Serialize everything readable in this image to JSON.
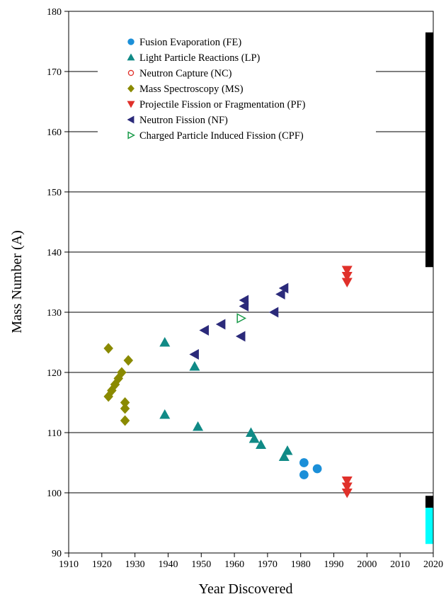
{
  "chart_data": {
    "type": "scatter",
    "title": "",
    "xlabel": "Year Discovered",
    "ylabel": "Mass Number (A)",
    "xlim": [
      1910,
      2020
    ],
    "ylim": [
      90,
      180
    ],
    "xticks": [
      1910,
      1920,
      1930,
      1940,
      1950,
      1960,
      1970,
      1980,
      1990,
      2000,
      2010,
      2020
    ],
    "yticks": [
      90,
      100,
      110,
      120,
      130,
      140,
      150,
      160,
      170,
      180
    ],
    "grid": "horizontal",
    "legend_position": "top-left",
    "series": [
      {
        "name": "Fusion Evaporation (FE)",
        "marker": "circle",
        "color": "#1b8fd8",
        "points": [
          [
            1981,
            105
          ],
          [
            1981,
            103
          ],
          [
            1985,
            104
          ]
        ]
      },
      {
        "name": "Light Particle Reactions (LP)",
        "marker": "triangle-up",
        "color": "#108a86",
        "points": [
          [
            1939,
            125
          ],
          [
            1939,
            113
          ],
          [
            1948,
            121
          ],
          [
            1949,
            111
          ],
          [
            1965,
            110
          ],
          [
            1966,
            109
          ],
          [
            1968,
            108
          ],
          [
            1975,
            106
          ],
          [
            1976,
            107
          ]
        ]
      },
      {
        "name": "Neutron Capture (NC)",
        "marker": "circle-open",
        "color": "#e0302a",
        "points": []
      },
      {
        "name": "Mass Spectroscopy (MS)",
        "marker": "diamond",
        "color": "#8a8a00",
        "points": [
          [
            1922,
            124
          ],
          [
            1922,
            116
          ],
          [
            1923,
            117
          ],
          [
            1924,
            118
          ],
          [
            1925,
            119
          ],
          [
            1926,
            120
          ],
          [
            1927,
            115
          ],
          [
            1927,
            114
          ],
          [
            1927,
            112
          ],
          [
            1928,
            122
          ]
        ]
      },
      {
        "name": "Projectile Fission or Fragmentation (PF)",
        "marker": "triangle-down",
        "color": "#e0302a",
        "points": [
          [
            1994,
            137
          ],
          [
            1994,
            136
          ],
          [
            1994,
            135
          ],
          [
            1994,
            102
          ],
          [
            1994,
            101
          ],
          [
            1994,
            100
          ]
        ]
      },
      {
        "name": "Neutron Fission (NF)",
        "marker": "triangle-left",
        "color": "#2b2a7a",
        "points": [
          [
            1948,
            123
          ],
          [
            1951,
            127
          ],
          [
            1956,
            128
          ],
          [
            1962,
            126
          ],
          [
            1963,
            132
          ],
          [
            1963,
            131
          ],
          [
            1972,
            130
          ],
          [
            1974,
            133
          ],
          [
            1975,
            134
          ]
        ]
      },
      {
        "name": "Charged Particle Induced Fission (CPF)",
        "marker": "triangle-right-open",
        "color": "#1a9b4a",
        "points": [
          [
            1962,
            129
          ]
        ]
      }
    ],
    "bars": [
      {
        "color": "#000000",
        "y_range": [
          137.5,
          176.5
        ]
      },
      {
        "color": "#000000",
        "y_range": [
          97.5,
          99.5
        ]
      },
      {
        "color": "#00ffff",
        "y_range": [
          91.5,
          97.5
        ]
      }
    ]
  }
}
